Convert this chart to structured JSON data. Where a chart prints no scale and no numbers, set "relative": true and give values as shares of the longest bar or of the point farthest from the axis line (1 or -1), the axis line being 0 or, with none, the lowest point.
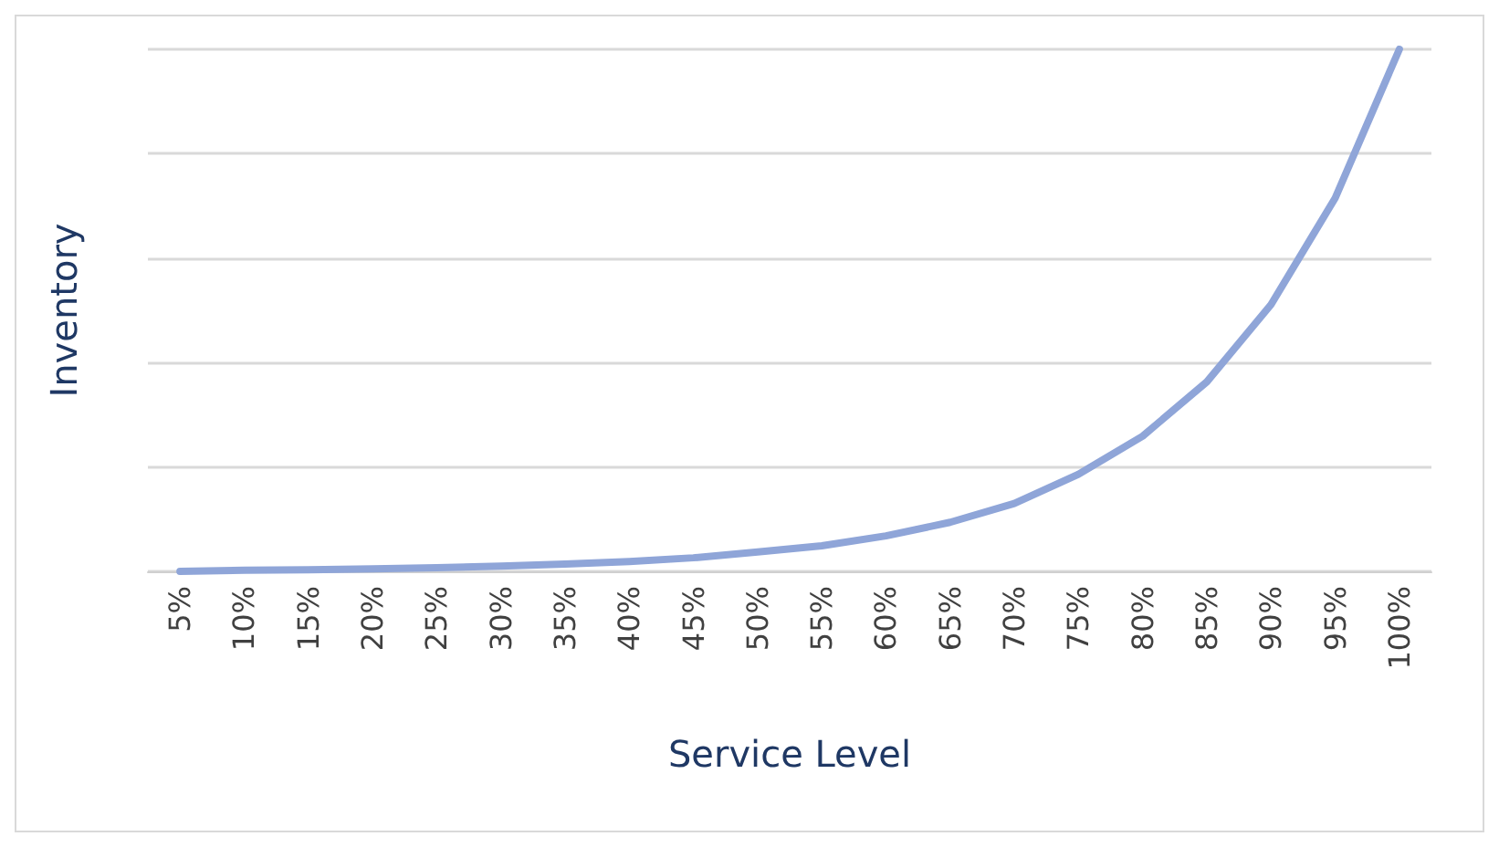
{
  "chart_data": {
    "type": "line",
    "xlabel": "Service Level",
    "ylabel": "Inventory",
    "relative": true,
    "grid": "y",
    "marker": "none",
    "line_style": "solid",
    "categories": [
      "5%",
      "10%",
      "15%",
      "20%",
      "25%",
      "30%",
      "35%",
      "40%",
      "45%",
      "50%",
      "55%",
      "60%",
      "65%",
      "70%",
      "75%",
      "80%",
      "85%",
      "90%",
      "95%",
      "100%"
    ],
    "series": [
      {
        "color": "#8fa5d8",
        "values": [
          0,
          0.002,
          0.003,
          0.005,
          0.007,
          0.01,
          0.014,
          0.019,
          0.026,
          0.037,
          0.049,
          0.068,
          0.094,
          0.13,
          0.186,
          0.259,
          0.363,
          0.511,
          0.715,
          1
        ]
      }
    ]
  }
}
